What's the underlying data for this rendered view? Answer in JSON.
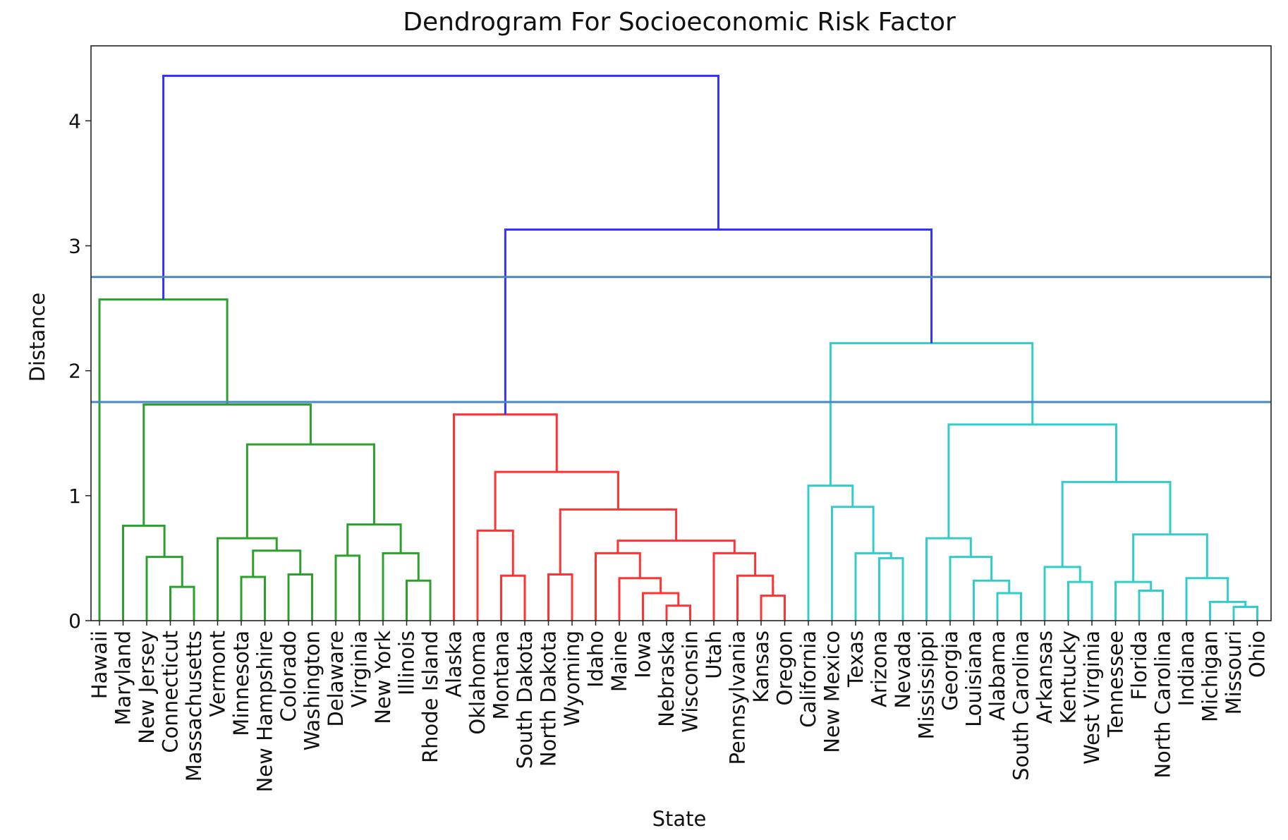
{
  "chart_data": {
    "type": "dendrogram",
    "title": "Dendrogram For Socioeconomic Risk Factor",
    "xlabel": "State",
    "ylabel": "Distance",
    "ylim": [
      0,
      4.6
    ],
    "yticks": [
      0,
      1,
      2,
      3,
      4
    ],
    "grid": false,
    "leaves": [
      "Hawaii",
      "Maryland",
      "New Jersey",
      "Connecticut",
      "Massachusetts",
      "Vermont",
      "Minnesota",
      "New Hampshire",
      "Colorado",
      "Washington",
      "Delaware",
      "Virginia",
      "New York",
      "Illinois",
      "Rhode Island",
      "Alaska",
      "Oklahoma",
      "Montana",
      "South Dakota",
      "North Dakota",
      "Wyoming",
      "Idaho",
      "Maine",
      "Iowa",
      "Nebraska",
      "Wisconsin",
      "Utah",
      "Pennsylvania",
      "Kansas",
      "Oregon",
      "California",
      "New Mexico",
      "Texas",
      "Arizona",
      "Nevada",
      "Mississippi",
      "Georgia",
      "Louisiana",
      "Alabama",
      "South Carolina",
      "Arkansas",
      "Kentucky",
      "West Virginia",
      "Tennessee",
      "Florida",
      "North Carolina",
      "Indiana",
      "Michigan",
      "Missouri",
      "Ohio"
    ],
    "cluster_colors": {
      "green": "#2ca02c",
      "red": "#ff3333",
      "cyan": "#33cccc",
      "blue": "#3333ff",
      "threshold": "#4a89bd"
    },
    "merges": [
      {
        "left": "Connecticut",
        "right": "Massachusetts",
        "height": 0.27,
        "color": "green"
      },
      {
        "left": "New Jersey",
        "right": [
          "Connecticut",
          "Massachusetts"
        ],
        "height": 0.51,
        "color": "green"
      },
      {
        "left": "Maryland",
        "right": [
          "New Jersey",
          "Connecticut",
          "Massachusetts"
        ],
        "height": 0.76,
        "color": "green"
      },
      {
        "left": "Minnesota",
        "right": "New Hampshire",
        "height": 0.35,
        "color": "green"
      },
      {
        "left": "Colorado",
        "right": "Washington",
        "height": 0.37,
        "color": "green"
      },
      {
        "left": [
          "Minnesota",
          "New Hampshire"
        ],
        "right": [
          "Colorado",
          "Washington"
        ],
        "height": 0.56,
        "color": "green"
      },
      {
        "left": "Vermont",
        "right": [
          "Minnesota",
          "New Hampshire",
          "Colorado",
          "Washington"
        ],
        "height": 0.66,
        "color": "green"
      },
      {
        "left": "Delaware",
        "right": "Virginia",
        "height": 0.52,
        "color": "green"
      },
      {
        "left": "Illinois",
        "right": "Rhode Island",
        "height": 0.32,
        "color": "green"
      },
      {
        "left": "New York",
        "right": [
          "Illinois",
          "Rhode Island"
        ],
        "height": 0.54,
        "color": "green"
      },
      {
        "left": [
          "Delaware",
          "Virginia"
        ],
        "right": [
          "New York",
          "Illinois",
          "Rhode Island"
        ],
        "height": 0.77,
        "color": "green"
      },
      {
        "left": [
          "Vermont",
          "Minnesota",
          "New Hampshire",
          "Colorado",
          "Washington"
        ],
        "right": [
          "Delaware",
          "Virginia",
          "New York",
          "Illinois",
          "Rhode Island"
        ],
        "height": 1.41,
        "color": "green"
      },
      {
        "left": [
          "Maryland",
          "New Jersey",
          "Connecticut",
          "Massachusetts"
        ],
        "right": [
          "Vermont",
          "Minnesota",
          "New Hampshire",
          "Colorado",
          "Washington",
          "Delaware",
          "Virginia",
          "New York",
          "Illinois",
          "Rhode Island"
        ],
        "height": 1.73,
        "color": "green"
      },
      {
        "left": "Hawaii",
        "right": [
          "Maryland",
          "New Jersey",
          "Connecticut",
          "Massachusetts",
          "Vermont",
          "Minnesota",
          "New Hampshire",
          "Colorado",
          "Washington",
          "Delaware",
          "Virginia",
          "New York",
          "Illinois",
          "Rhode Island"
        ],
        "height": 2.57,
        "color": "green"
      },
      {
        "left": "Montana",
        "right": "South Dakota",
        "height": 0.36,
        "color": "red"
      },
      {
        "left": "Oklahoma",
        "right": [
          "Montana",
          "South Dakota"
        ],
        "height": 0.72,
        "color": "red"
      },
      {
        "left": "North Dakota",
        "right": "Wyoming",
        "height": 0.37,
        "color": "red"
      },
      {
        "left": "Nebraska",
        "right": "Wisconsin",
        "height": 0.12,
        "color": "red"
      },
      {
        "left": "Iowa",
        "right": [
          "Nebraska",
          "Wisconsin"
        ],
        "height": 0.22,
        "color": "red"
      },
      {
        "left": "Maine",
        "right": [
          "Iowa",
          "Nebraska",
          "Wisconsin"
        ],
        "height": 0.34,
        "color": "red"
      },
      {
        "left": "Idaho",
        "right": [
          "Maine",
          "Iowa",
          "Nebraska",
          "Wisconsin"
        ],
        "height": 0.54,
        "color": "red"
      },
      {
        "left": "Kansas",
        "right": "Oregon",
        "height": 0.2,
        "color": "red"
      },
      {
        "left": "Pennsylvania",
        "right": [
          "Kansas",
          "Oregon"
        ],
        "height": 0.36,
        "color": "red"
      },
      {
        "left": "Utah",
        "right": [
          "Pennsylvania",
          "Kansas",
          "Oregon"
        ],
        "height": 0.54,
        "color": "red"
      },
      {
        "left": [
          "Idaho",
          "Maine",
          "Iowa",
          "Nebraska",
          "Wisconsin"
        ],
        "right": [
          "Utah",
          "Pennsylvania",
          "Kansas",
          "Oregon"
        ],
        "height": 0.64,
        "color": "red"
      },
      {
        "left": [
          "North Dakota",
          "Wyoming"
        ],
        "right": [
          "Idaho",
          "Maine",
          "Iowa",
          "Nebraska",
          "Wisconsin",
          "Utah",
          "Pennsylvania",
          "Kansas",
          "Oregon"
        ],
        "height": 0.89,
        "color": "red"
      },
      {
        "left": [
          "Oklahoma",
          "Montana",
          "South Dakota"
        ],
        "right": [
          "North Dakota",
          "Wyoming",
          "Idaho",
          "Maine",
          "Iowa",
          "Nebraska",
          "Wisconsin",
          "Utah",
          "Pennsylvania",
          "Kansas",
          "Oregon"
        ],
        "height": 1.19,
        "color": "red"
      },
      {
        "left": "Alaska",
        "right": [
          "Oklahoma",
          "Montana",
          "South Dakota",
          "North Dakota",
          "Wyoming",
          "Idaho",
          "Maine",
          "Iowa",
          "Nebraska",
          "Wisconsin",
          "Utah",
          "Pennsylvania",
          "Kansas",
          "Oregon"
        ],
        "height": 1.65,
        "color": "red"
      },
      {
        "left": "Arizona",
        "right": "Nevada",
        "height": 0.5,
        "color": "cyan"
      },
      {
        "left": "Texas",
        "right": [
          "Arizona",
          "Nevada"
        ],
        "height": 0.54,
        "color": "cyan"
      },
      {
        "left": "New Mexico",
        "right": [
          "Texas",
          "Arizona",
          "Nevada"
        ],
        "height": 0.91,
        "color": "cyan"
      },
      {
        "left": "California",
        "right": [
          "New Mexico",
          "Texas",
          "Arizona",
          "Nevada"
        ],
        "height": 1.08,
        "color": "cyan"
      },
      {
        "left": "Alabama",
        "right": "South Carolina",
        "height": 0.22,
        "color": "cyan"
      },
      {
        "left": "Louisiana",
        "right": [
          "Alabama",
          "South Carolina"
        ],
        "height": 0.32,
        "color": "cyan"
      },
      {
        "left": "Georgia",
        "right": [
          "Louisiana",
          "Alabama",
          "South Carolina"
        ],
        "height": 0.51,
        "color": "cyan"
      },
      {
        "left": "Mississippi",
        "right": [
          "Georgia",
          "Louisiana",
          "Alabama",
          "South Carolina"
        ],
        "height": 0.66,
        "color": "cyan"
      },
      {
        "left": "Kentucky",
        "right": "West Virginia",
        "height": 0.31,
        "color": "cyan"
      },
      {
        "left": "Arkansas",
        "right": [
          "Kentucky",
          "West Virginia"
        ],
        "height": 0.43,
        "color": "cyan"
      },
      {
        "left": "Florida",
        "right": "North Carolina",
        "height": 0.24,
        "color": "cyan"
      },
      {
        "left": "Tennessee",
        "right": [
          "Florida",
          "North Carolina"
        ],
        "height": 0.31,
        "color": "cyan"
      },
      {
        "left": "Missouri",
        "right": "Ohio",
        "height": 0.11,
        "color": "cyan"
      },
      {
        "left": "Michigan",
        "right": [
          "Missouri",
          "Ohio"
        ],
        "height": 0.15,
        "color": "cyan"
      },
      {
        "left": "Indiana",
        "right": [
          "Michigan",
          "Missouri",
          "Ohio"
        ],
        "height": 0.34,
        "color": "cyan"
      },
      {
        "left": [
          "Tennessee",
          "Florida",
          "North Carolina"
        ],
        "right": [
          "Indiana",
          "Michigan",
          "Missouri",
          "Ohio"
        ],
        "height": 0.69,
        "color": "cyan"
      },
      {
        "left": [
          "Arkansas",
          "Kentucky",
          "West Virginia"
        ],
        "right": [
          "Tennessee",
          "Florida",
          "North Carolina",
          "Indiana",
          "Michigan",
          "Missouri",
          "Ohio"
        ],
        "height": 1.11,
        "color": "cyan"
      },
      {
        "left": [
          "Mississippi",
          "Georgia",
          "Louisiana",
          "Alabama",
          "South Carolina"
        ],
        "right": [
          "Arkansas",
          "Kentucky",
          "West Virginia",
          "Tennessee",
          "Florida",
          "North Carolina",
          "Indiana",
          "Michigan",
          "Missouri",
          "Ohio"
        ],
        "height": 1.57,
        "color": "cyan"
      },
      {
        "left": [
          "California",
          "New Mexico",
          "Texas",
          "Arizona",
          "Nevada"
        ],
        "right": [
          "Mississippi",
          "Georgia",
          "Louisiana",
          "Alabama",
          "South Carolina",
          "Arkansas",
          "Kentucky",
          "West Virginia",
          "Tennessee",
          "Florida",
          "North Carolina",
          "Indiana",
          "Michigan",
          "Missouri",
          "Ohio"
        ],
        "height": 2.22,
        "color": "cyan"
      },
      {
        "left": [
          "Alaska",
          "Oklahoma",
          "Montana",
          "South Dakota",
          "North Dakota",
          "Wyoming",
          "Idaho",
          "Maine",
          "Iowa",
          "Nebraska",
          "Wisconsin",
          "Utah",
          "Pennsylvania",
          "Kansas",
          "Oregon"
        ],
        "right": [
          "California",
          "New Mexico",
          "Texas",
          "Arizona",
          "Nevada",
          "Mississippi",
          "Georgia",
          "Louisiana",
          "Alabama",
          "South Carolina",
          "Arkansas",
          "Kentucky",
          "West Virginia",
          "Tennessee",
          "Florida",
          "North Carolina",
          "Indiana",
          "Michigan",
          "Missouri",
          "Ohio"
        ],
        "height": 3.13,
        "color": "blue"
      },
      {
        "left": [
          "Hawaii",
          "Maryland",
          "New Jersey",
          "Connecticut",
          "Massachusetts",
          "Vermont",
          "Minnesota",
          "New Hampshire",
          "Colorado",
          "Washington",
          "Delaware",
          "Virginia",
          "New York",
          "Illinois",
          "Rhode Island"
        ],
        "right": [
          "Alaska",
          "Oklahoma",
          "Montana",
          "South Dakota",
          "North Dakota",
          "Wyoming",
          "Idaho",
          "Maine",
          "Iowa",
          "Nebraska",
          "Wisconsin",
          "Utah",
          "Pennsylvania",
          "Kansas",
          "Oregon",
          "California",
          "New Mexico",
          "Texas",
          "Arizona",
          "Nevada",
          "Mississippi",
          "Georgia",
          "Louisiana",
          "Alabama",
          "South Carolina",
          "Arkansas",
          "Kentucky",
          "West Virginia",
          "Tennessee",
          "Florida",
          "North Carolina",
          "Indiana",
          "Michigan",
          "Missouri",
          "Ohio"
        ],
        "height": 4.36,
        "color": "blue"
      }
    ],
    "threshold_lines": [
      1.75,
      2.75
    ]
  }
}
